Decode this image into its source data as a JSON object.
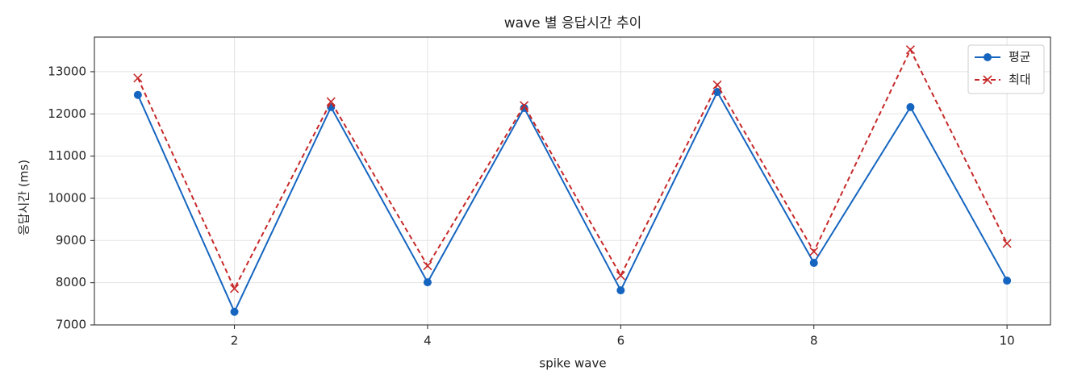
{
  "chart_data": {
    "type": "line",
    "title": "wave 별 응답시간 추이",
    "xlabel": "spike wave",
    "ylabel": "응답시간 (ms)",
    "x": [
      1,
      2,
      3,
      4,
      5,
      6,
      7,
      8,
      9,
      10
    ],
    "series": [
      {
        "name": "평균",
        "color": "#1565c0",
        "marker": "circle",
        "dash": false,
        "values": [
          12450,
          7310,
          12160,
          8010,
          12140,
          7820,
          12520,
          8470,
          12160,
          8050
        ]
      },
      {
        "name": "최대",
        "color": "#c62828",
        "marker": "x",
        "dash": true,
        "values": [
          12850,
          7860,
          12290,
          8400,
          12200,
          8170,
          12690,
          8740,
          13520,
          8930
        ]
      }
    ],
    "xlim": [
      0.55,
      10.45
    ],
    "ylim": [
      7000,
      13820
    ],
    "xticks": [
      2,
      4,
      6,
      8,
      10
    ],
    "yticks": [
      7000,
      8000,
      9000,
      10000,
      11000,
      12000,
      13000
    ],
    "grid": true,
    "legend": "upper right"
  }
}
